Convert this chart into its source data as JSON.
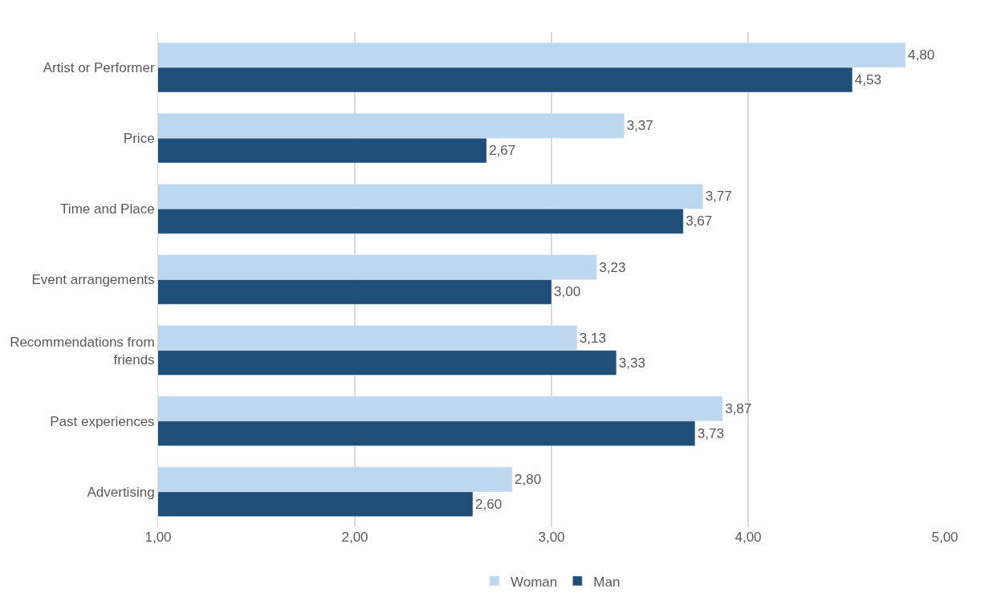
{
  "chart_data": {
    "type": "bar",
    "orientation": "horizontal",
    "categories": [
      "Artist or Performer",
      "Price",
      "Time and Place",
      "Event arrangements",
      "Recommendations from friends",
      "Past experiences",
      "Advertising"
    ],
    "series": [
      {
        "name": "Woman",
        "color": "#bdd7ee",
        "values": [
          4.8,
          3.37,
          3.77,
          3.23,
          3.13,
          3.87,
          2.8
        ],
        "value_labels": [
          "4,80",
          "3,37",
          "3,77",
          "3,23",
          "3,13",
          "3,87",
          "2,80"
        ]
      },
      {
        "name": "Man",
        "color": "#1f4e79",
        "values": [
          4.53,
          2.67,
          3.67,
          3.0,
          3.33,
          3.73,
          2.6
        ],
        "value_labels": [
          "4,53",
          "2,67",
          "3,67",
          "3,00",
          "3,33",
          "3,73",
          "2,60"
        ]
      }
    ],
    "xlim": [
      1,
      5
    ],
    "xticks": [
      {
        "value": 1,
        "label": "1,00"
      },
      {
        "value": 2,
        "label": "2,00"
      },
      {
        "value": 3,
        "label": "3,00"
      },
      {
        "value": 4,
        "label": "4,00"
      },
      {
        "value": 5,
        "label": "5,00"
      }
    ],
    "grid": "x",
    "legend": "bottom"
  }
}
